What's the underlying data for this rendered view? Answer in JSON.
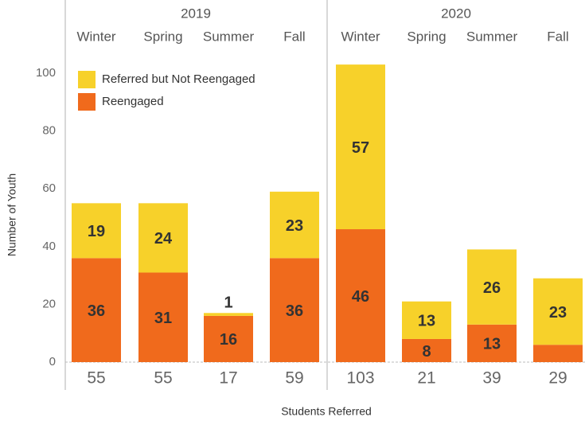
{
  "chart_data": {
    "type": "stacked_bar",
    "y_label": "Number of Youth",
    "x_label": "Students Referred",
    "groups": [
      {
        "name": "2019",
        "categories": [
          "Winter",
          "Spring",
          "Summer",
          "Fall"
        ]
      },
      {
        "name": "2020",
        "categories": [
          "Winter",
          "Spring",
          "Summer",
          "Fall"
        ]
      }
    ],
    "series": [
      {
        "name": "Reengaged",
        "color": "#f06a1c",
        "values": [
          36,
          31,
          16,
          36,
          46,
          8,
          13,
          6
        ]
      },
      {
        "name": "Referred but Not Reengaged",
        "color": "#f7d12a",
        "values": [
          19,
          24,
          1,
          23,
          57,
          13,
          26,
          23
        ]
      }
    ],
    "totals": [
      55,
      55,
      17,
      59,
      103,
      21,
      39,
      29
    ],
    "ylim": [
      0,
      105
    ],
    "yticks": [
      0,
      20,
      40,
      60,
      80,
      100
    ],
    "legend": "top-left"
  }
}
